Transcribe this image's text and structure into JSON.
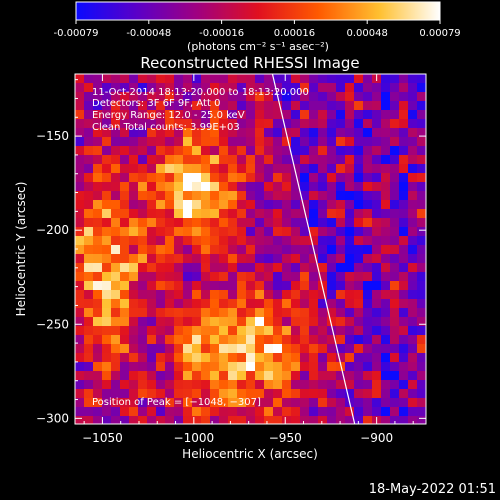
{
  "colorbar": {
    "ticks": [
      "-0.00079",
      "-0.00048",
      "-0.00016",
      "0.00016",
      "0.00048",
      "0.00079"
    ],
    "unit_label": "(photons cm⁻² s⁻¹ asec⁻²)",
    "colors": [
      "#0a0aff",
      "#5a00c8",
      "#a00080",
      "#e01020",
      "#ff5a00",
      "#ffc030",
      "#ffffff"
    ]
  },
  "chart_data": {
    "type": "heatmap",
    "title": "Reconstructed RHESSI Image",
    "xlabel": "Heliocentric X (arcsec)",
    "ylabel": "Heliocentric Y (arcsec)",
    "xlim": [
      -1065,
      -873
    ],
    "ylim": [
      -303,
      -117
    ],
    "x_ticks": [
      -1050,
      -1000,
      -950,
      -900
    ],
    "y_ticks": [
      -300,
      -250,
      -200,
      -150
    ],
    "x_tick_labels": [
      "−1050",
      "−1000",
      "−950",
      "−900"
    ],
    "y_tick_labels": [
      "−300",
      "−250",
      "−200",
      "−150"
    ],
    "value_range": [
      -0.00079,
      0.00079
    ],
    "limb_line": [
      [
        -957,
        -117
      ],
      [
        -912,
        -303
      ]
    ],
    "peak_position": [
      -1048,
      -307
    ],
    "annotations": [
      "11-Oct-2014 18:13:20.000 to 18:13:20.000",
      "Detectors: 3F 6F 9F, Att 0",
      "Energy Range: 12.0 - 25.0 keV",
      "Clean    Total counts: 3.99E+03"
    ],
    "peak_label": "Position of Peak = [−1048, −307]"
  },
  "timestamp": "18-May-2022 01:51"
}
